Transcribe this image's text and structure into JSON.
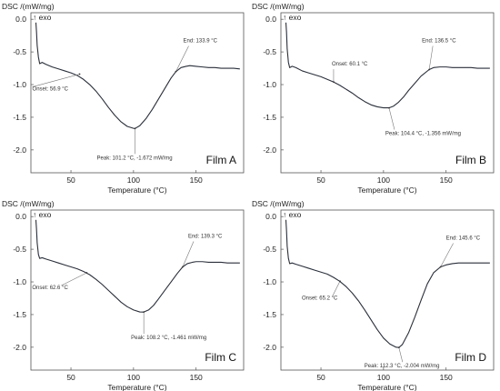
{
  "chart_data": [
    {
      "type": "line",
      "panel_label": "Film A",
      "ylabel": "DSC /(mW/mg)",
      "exo_label": "↑ exo",
      "xlabel": "Temperature (°C)",
      "xlim": [
        18,
        188
      ],
      "ylim": [
        -2.35,
        0.1
      ],
      "xticks": [
        50,
        100,
        150
      ],
      "yticks": [
        0.0,
        -0.5,
        -1.0,
        -1.5,
        -2.0
      ],
      "yticklabels": [
        "0.0",
        "-0.5",
        "-1.0",
        "-1.5",
        "-2.0"
      ],
      "series": [
        {
          "x": [
            22,
            22.5,
            23,
            24,
            25,
            27,
            30,
            35,
            40,
            45,
            50,
            55,
            60,
            65,
            70,
            75,
            80,
            85,
            90,
            95,
            100,
            101.2,
            105,
            110,
            115,
            120,
            125,
            130,
            133.9,
            138,
            142,
            145,
            150,
            155,
            160,
            165,
            170,
            175,
            180,
            185
          ],
          "y": [
            -0.05,
            -0.2,
            -0.4,
            -0.58,
            -0.68,
            -0.66,
            -0.69,
            -0.73,
            -0.76,
            -0.79,
            -0.82,
            -0.86,
            -0.92,
            -1.0,
            -1.1,
            -1.22,
            -1.35,
            -1.47,
            -1.57,
            -1.64,
            -1.67,
            -1.672,
            -1.63,
            -1.52,
            -1.38,
            -1.22,
            -1.06,
            -0.9,
            -0.8,
            -0.74,
            -0.72,
            -0.71,
            -0.72,
            -0.73,
            -0.74,
            -0.74,
            -0.75,
            -0.75,
            -0.75,
            -0.76
          ]
        }
      ],
      "annotations": [
        {
          "label": "Onset: 56.9 °C",
          "x": 56.9,
          "y": -0.84
        },
        {
          "label": "Peak: 101.2 °C, -1.672 mW/mg",
          "x": 101.2,
          "y": -1.672
        },
        {
          "label": "End: 133.9 °C",
          "x": 133.9,
          "y": -0.8
        }
      ]
    },
    {
      "type": "line",
      "panel_label": "Film B",
      "ylabel": "DSC /(mW/mg)",
      "exo_label": "↑ exo",
      "xlabel": "Temperature (°C)",
      "xlim": [
        18,
        188
      ],
      "ylim": [
        -2.35,
        0.1
      ],
      "xticks": [
        50,
        100,
        150
      ],
      "yticks": [
        0.0,
        -0.5,
        -1.0,
        -1.5,
        -2.0
      ],
      "yticklabels": [
        "0.0",
        "-0.5",
        "-1.0",
        "-1.5",
        "-2.0"
      ],
      "series": [
        {
          "x": [
            22,
            22.5,
            23,
            24,
            25,
            27,
            30,
            35,
            40,
            45,
            50,
            55,
            60,
            65,
            70,
            75,
            80,
            85,
            90,
            95,
            100,
            104.4,
            108,
            112,
            116,
            120,
            125,
            130,
            136.5,
            140,
            145,
            150,
            155,
            160,
            165,
            170,
            175,
            180,
            185
          ],
          "y": [
            -0.05,
            -0.2,
            -0.45,
            -0.66,
            -0.74,
            -0.72,
            -0.74,
            -0.79,
            -0.82,
            -0.85,
            -0.88,
            -0.92,
            -0.96,
            -1.01,
            -1.07,
            -1.13,
            -1.2,
            -1.26,
            -1.31,
            -1.34,
            -1.355,
            -1.356,
            -1.33,
            -1.27,
            -1.19,
            -1.09,
            -0.98,
            -0.87,
            -0.77,
            -0.74,
            -0.73,
            -0.73,
            -0.74,
            -0.74,
            -0.74,
            -0.74,
            -0.75,
            -0.75,
            -0.75
          ]
        }
      ],
      "annotations": [
        {
          "label": "Onset: 60.1 °C",
          "x": 60.1,
          "y": -0.96
        },
        {
          "label": "Peak: 104.4 °C, -1.356 mW/mg",
          "x": 104.4,
          "y": -1.356
        },
        {
          "label": "End: 136.5 °C",
          "x": 136.5,
          "y": -0.77
        }
      ]
    },
    {
      "type": "line",
      "panel_label": "Film C",
      "ylabel": "DSC /(mW/mg)",
      "exo_label": "↑ exo",
      "xlabel": "Temperature (°C)",
      "xlim": [
        18,
        188
      ],
      "ylim": [
        -2.35,
        0.1
      ],
      "xticks": [
        50,
        100,
        150
      ],
      "yticks": [
        0.0,
        -0.5,
        -1.0,
        -1.5,
        -2.0
      ],
      "yticklabels": [
        "0.0",
        "-0.5",
        "-1.0",
        "-1.5",
        "-2.0"
      ],
      "series": [
        {
          "x": [
            22,
            22.5,
            23,
            24,
            25,
            27,
            30,
            35,
            40,
            45,
            50,
            55,
            60,
            65,
            70,
            75,
            80,
            85,
            90,
            95,
            100,
            105,
            108.2,
            112,
            116,
            120,
            125,
            130,
            135,
            139.3,
            143,
            147,
            150,
            155,
            160,
            165,
            170,
            175,
            180,
            185
          ],
          "y": [
            -0.05,
            -0.2,
            -0.4,
            -0.58,
            -0.64,
            -0.63,
            -0.65,
            -0.68,
            -0.71,
            -0.74,
            -0.77,
            -0.8,
            -0.84,
            -0.89,
            -0.96,
            -1.04,
            -1.13,
            -1.22,
            -1.31,
            -1.38,
            -1.43,
            -1.46,
            -1.461,
            -1.43,
            -1.36,
            -1.26,
            -1.13,
            -1.0,
            -0.87,
            -0.77,
            -0.72,
            -0.7,
            -0.69,
            -0.69,
            -0.7,
            -0.7,
            -0.7,
            -0.71,
            -0.71,
            -0.71
          ]
        }
      ],
      "annotations": [
        {
          "label": "Onset: 62.6 °C",
          "x": 62.6,
          "y": -0.86
        },
        {
          "label": "Peak: 108.2 °C, -1.461 mW/mg",
          "x": 108.2,
          "y": -1.461
        },
        {
          "label": "End: 139.3 °C",
          "x": 139.3,
          "y": -0.77
        }
      ]
    },
    {
      "type": "line",
      "panel_label": "Film D",
      "ylabel": "DSC /(mW/mg)",
      "exo_label": "↑ exo",
      "xlabel": "Temperature (°C)",
      "xlim": [
        18,
        188
      ],
      "ylim": [
        -2.35,
        0.1
      ],
      "xticks": [
        50,
        100,
        150
      ],
      "yticks": [
        0.0,
        -0.5,
        -1.0,
        -1.5,
        -2.0
      ],
      "yticklabels": [
        "0.0",
        "-0.5",
        "-1.0",
        "-1.5",
        "-2.0"
      ],
      "series": [
        {
          "x": [
            22,
            22.5,
            23,
            24,
            25,
            27,
            30,
            35,
            40,
            45,
            50,
            55,
            60,
            65,
            70,
            75,
            80,
            85,
            90,
            95,
            100,
            105,
            110,
            112.3,
            115,
            120,
            125,
            130,
            135,
            140,
            145.6,
            150,
            155,
            160,
            165,
            170,
            175,
            180,
            185
          ],
          "y": [
            -0.05,
            -0.22,
            -0.45,
            -0.64,
            -0.72,
            -0.71,
            -0.73,
            -0.76,
            -0.79,
            -0.82,
            -0.85,
            -0.88,
            -0.93,
            -0.99,
            -1.07,
            -1.17,
            -1.29,
            -1.43,
            -1.58,
            -1.73,
            -1.86,
            -1.95,
            -2.0,
            -2.004,
            -1.96,
            -1.78,
            -1.54,
            -1.28,
            -1.03,
            -0.86,
            -0.77,
            -0.74,
            -0.72,
            -0.71,
            -0.71,
            -0.71,
            -0.71,
            -0.71,
            -0.71
          ]
        }
      ],
      "annotations": [
        {
          "label": "Onset: 65.2 °C",
          "x": 65.2,
          "y": -0.99
        },
        {
          "label": "Peak: 112.3 °C, -2.004 mW/mg",
          "x": 112.3,
          "y": -2.004
        },
        {
          "label": "End: 145.6 °C",
          "x": 145.6,
          "y": -0.77
        }
      ]
    }
  ]
}
